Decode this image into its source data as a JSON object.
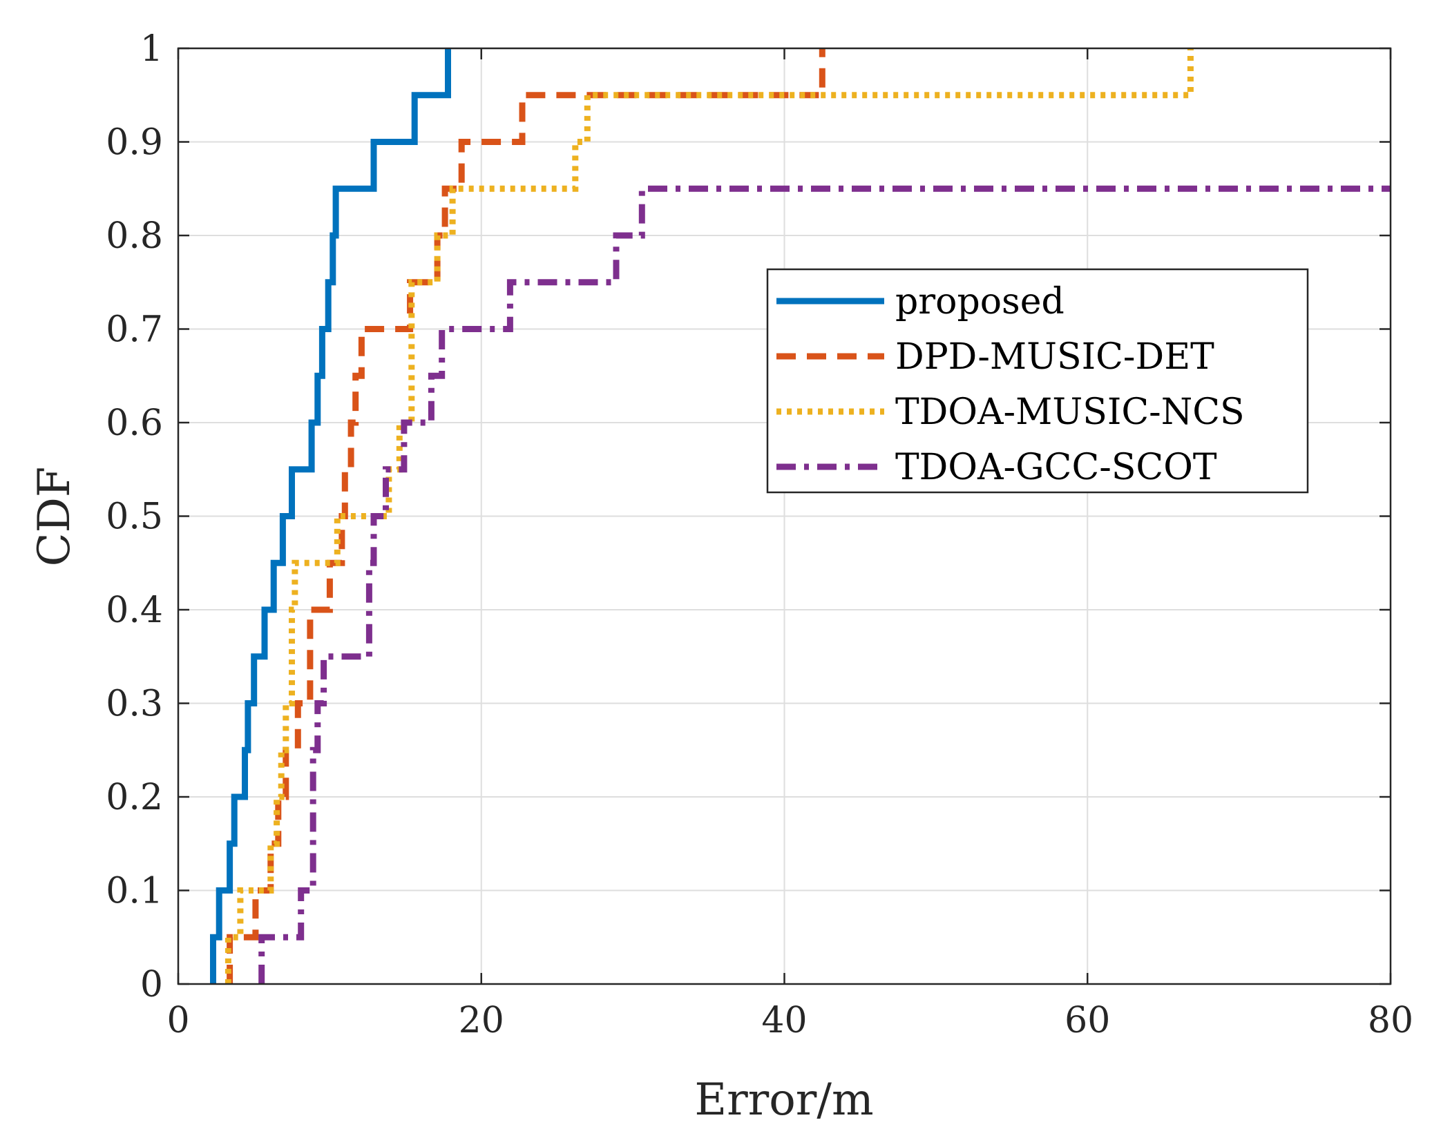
{
  "chart_data": {
    "type": "line",
    "step": true,
    "xlabel": "Error/m",
    "ylabel": "CDF",
    "xlim": [
      0,
      80
    ],
    "ylim": [
      0,
      1
    ],
    "grid": true,
    "legend_position": "right",
    "xticks": [
      0,
      20,
      40,
      60,
      80
    ],
    "yticks": [
      0,
      0.1,
      0.2,
      0.3,
      0.4,
      0.5,
      0.6,
      0.7,
      0.8,
      0.9,
      1
    ],
    "xtick_labels": [
      "0",
      "20",
      "40",
      "60",
      "80"
    ],
    "ytick_labels": [
      "0",
      "0.1",
      "0.2",
      "0.3",
      "0.4",
      "0.5",
      "0.6",
      "0.7",
      "0.8",
      "0.9",
      "1"
    ],
    "series": [
      {
        "name": "proposed",
        "color": "#0072BD",
        "style": "solid",
        "x": [
          2.3,
          2.7,
          3.4,
          3.7,
          4.4,
          4.6,
          5.0,
          5.7,
          6.3,
          6.9,
          7.5,
          8.8,
          9.2,
          9.5,
          9.9,
          10.2,
          10.4,
          12.9,
          15.6,
          17.8
        ],
        "y": [
          0.05,
          0.1,
          0.15,
          0.2,
          0.25,
          0.3,
          0.35,
          0.4,
          0.45,
          0.5,
          0.55,
          0.6,
          0.65,
          0.7,
          0.75,
          0.8,
          0.85,
          0.9,
          0.95,
          1.0
        ]
      },
      {
        "name": "DPD-MUSIC-DET",
        "color": "#D95319",
        "style": "dashed",
        "x": [
          3.4,
          5.1,
          6.1,
          6.6,
          7.1,
          7.9,
          8.7,
          10.0,
          10.8,
          11.0,
          11.4,
          11.7,
          12.1,
          15.3,
          15.6,
          17.1,
          17.6,
          18.7,
          22.7,
          42.5
        ],
        "y": [
          0.05,
          0.1,
          0.15,
          0.2,
          0.25,
          0.3,
          0.4,
          0.45,
          0.5,
          0.55,
          0.6,
          0.65,
          0.7,
          0.75,
          0.75,
          0.8,
          0.85,
          0.9,
          0.95,
          1.0
        ]
      },
      {
        "name": "TDOA-MUSIC-NCS",
        "color": "#EDB120",
        "style": "dotted",
        "x": [
          3.3,
          4.1,
          6.1,
          6.5,
          6.8,
          7.1,
          7.5,
          7.7,
          10.5,
          13.9,
          14.6,
          15.4,
          17.1,
          18.1,
          26.2,
          27.0,
          66.8
        ],
        "y": [
          0.05,
          0.1,
          0.15,
          0.2,
          0.25,
          0.3,
          0.4,
          0.45,
          0.5,
          0.55,
          0.6,
          0.75,
          0.8,
          0.85,
          0.9,
          0.95,
          1.0
        ]
      },
      {
        "name": "TDOA-GCC-SCOT",
        "color": "#7E2F8E",
        "style": "dashdot",
        "x": [
          5.5,
          8.1,
          8.9,
          9.2,
          9.6,
          12.6,
          12.9,
          13.7,
          14.9,
          16.7,
          17.4,
          21.9,
          28.9,
          30.6
        ],
        "y": [
          0.05,
          0.1,
          0.25,
          0.3,
          0.35,
          0.45,
          0.5,
          0.55,
          0.6,
          0.65,
          0.7,
          0.75,
          0.8,
          0.85
        ]
      }
    ]
  }
}
